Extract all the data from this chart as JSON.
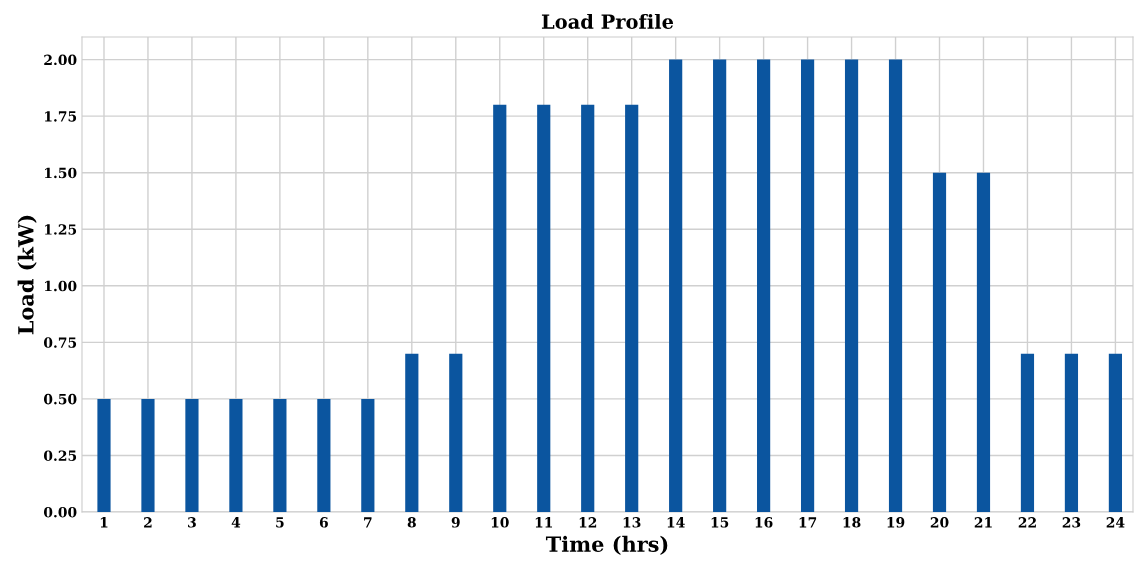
{
  "chart_data": {
    "type": "bar",
    "title": "Load Profile",
    "xlabel": "Time (hrs)",
    "ylabel": "Load (kW)",
    "categories": [
      "1",
      "2",
      "3",
      "4",
      "5",
      "6",
      "7",
      "8",
      "9",
      "10",
      "11",
      "12",
      "13",
      "14",
      "15",
      "16",
      "17",
      "18",
      "19",
      "20",
      "21",
      "22",
      "23",
      "24"
    ],
    "values": [
      0.5,
      0.5,
      0.5,
      0.5,
      0.5,
      0.5,
      0.5,
      0.7,
      0.7,
      1.8,
      1.8,
      1.8,
      1.8,
      2.0,
      2.0,
      2.0,
      2.0,
      2.0,
      2.0,
      1.5,
      1.5,
      0.7,
      0.7,
      0.7
    ],
    "color": "#0b559f",
    "ylim": [
      0,
      2.1
    ],
    "yticks": [
      {
        "value": 0,
        "label": "0.00"
      },
      {
        "value": 0.25,
        "label": "0.25"
      },
      {
        "value": 0.5,
        "label": "0.50"
      },
      {
        "value": 0.75,
        "label": "0.75"
      },
      {
        "value": 1,
        "label": "1.00"
      },
      {
        "value": 1.25,
        "label": "1.25"
      },
      {
        "value": 1.5,
        "label": "1.50"
      },
      {
        "value": 1.75,
        "label": "1.75"
      },
      {
        "value": 2,
        "label": "2.00"
      }
    ],
    "grid": true
  }
}
